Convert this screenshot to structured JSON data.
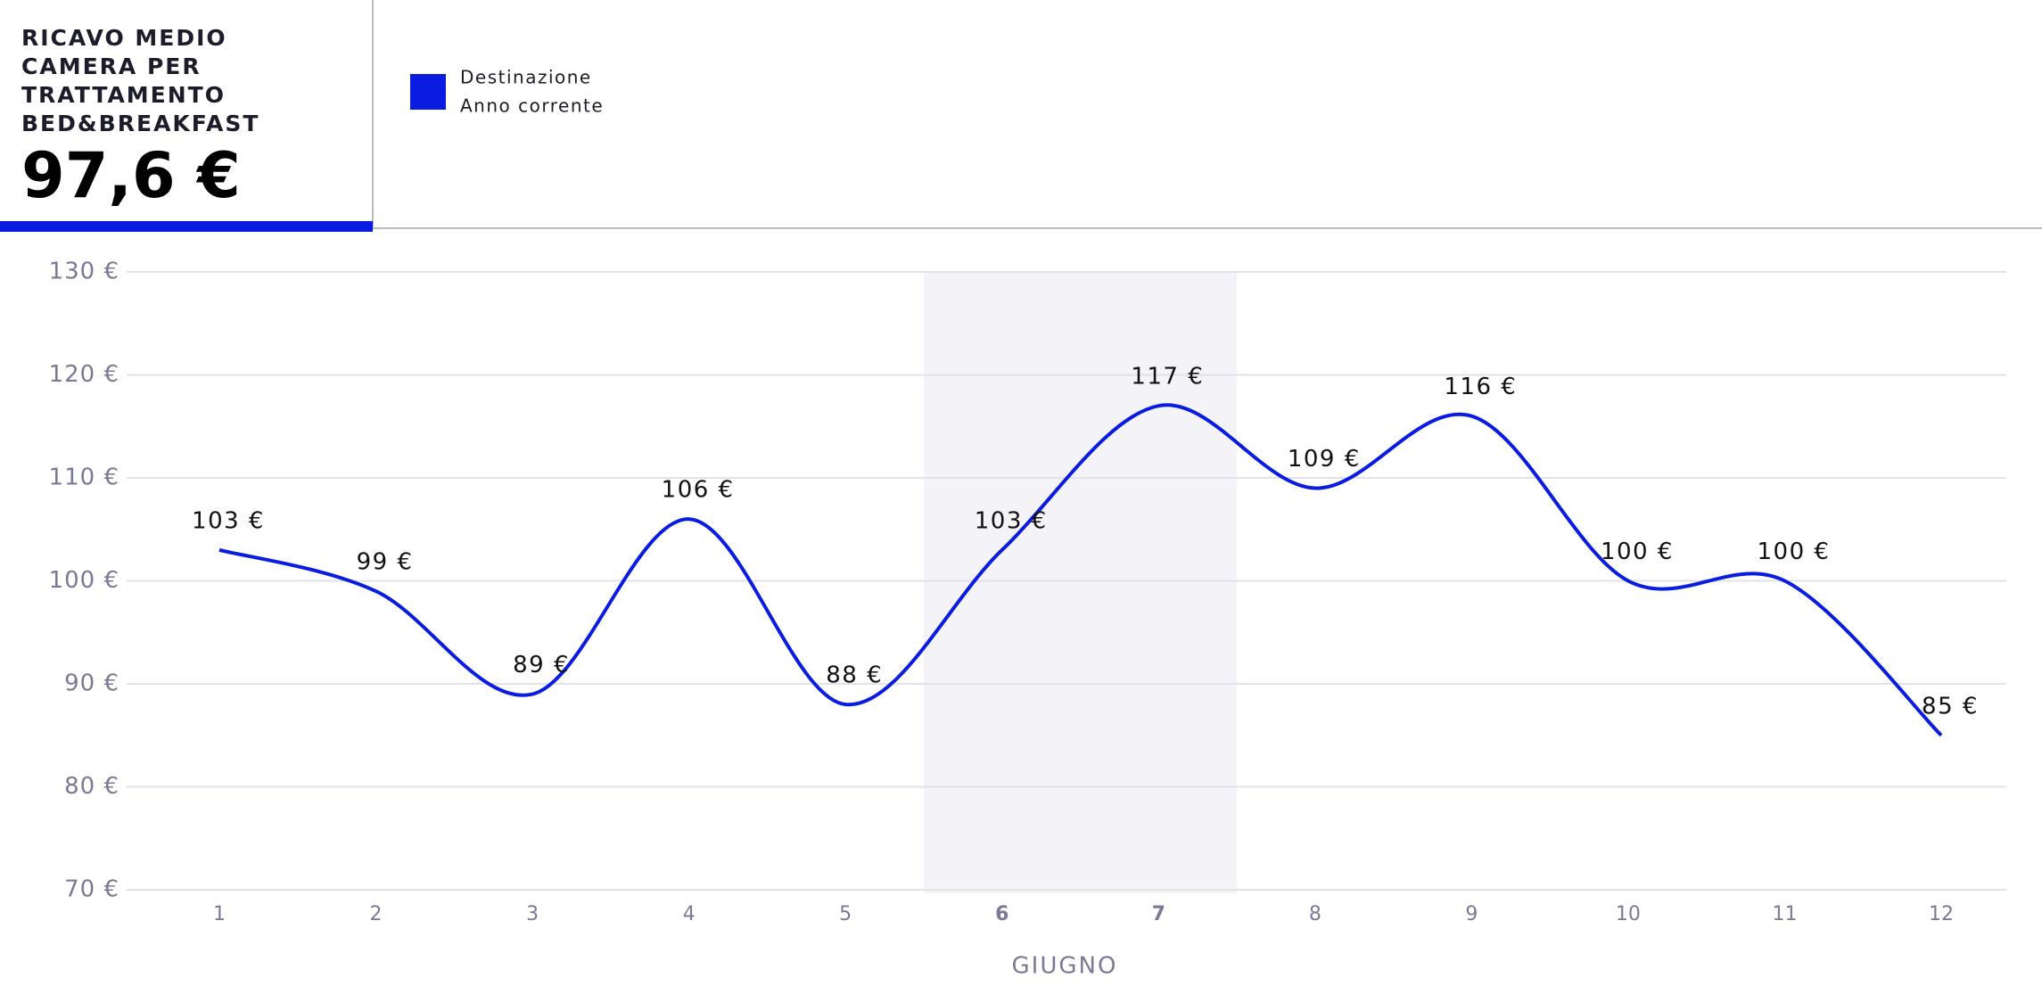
{
  "header": {
    "title_lines": [
      "RICAVO MEDIO",
      "CAMERA PER",
      "TRATTAMENTO",
      "BED&BREAKFAST"
    ],
    "value": "97,6 €"
  },
  "chart_data": {
    "type": "line",
    "categories": [
      "1",
      "2",
      "3",
      "4",
      "5",
      "6",
      "7",
      "8",
      "9",
      "10",
      "11",
      "12"
    ],
    "highlight_categories": [
      "6",
      "7"
    ],
    "x_label": "GIUGNO",
    "series": [
      {
        "name": "Destinazione",
        "period": "Anno corrente",
        "color": "#0a1ce0",
        "values": [
          103,
          99,
          89,
          106,
          88,
          103,
          117,
          109,
          116,
          100,
          100,
          85
        ],
        "value_labels": [
          "103 €",
          "99 €",
          "89 €",
          "106 €",
          "88 €",
          "103 €",
          "117 €",
          "109 €",
          "116 €",
          "100 €",
          "100 €",
          "85 €"
        ]
      }
    ],
    "ylim": [
      70,
      130
    ],
    "yticks": [
      {
        "value": 70,
        "label": "70 €"
      },
      {
        "value": 80,
        "label": "80 €"
      },
      {
        "value": 90,
        "label": "90 €"
      },
      {
        "value": 100,
        "label": "100 €"
      },
      {
        "value": 110,
        "label": "110 €"
      },
      {
        "value": 120,
        "label": "120 €"
      },
      {
        "value": 130,
        "label": "130 €"
      }
    ],
    "grid": true
  }
}
